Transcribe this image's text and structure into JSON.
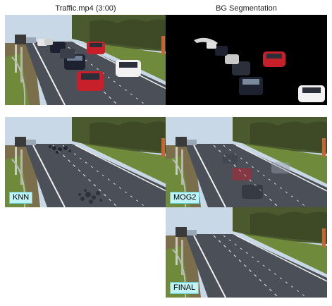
{
  "titles": {
    "source": "Traffic.mp4 (3:00)",
    "segmentation": "BG Segmentation"
  },
  "labels": {
    "knn": "KNN",
    "mog2": "MOG2",
    "final": "FINAL"
  },
  "colors": {
    "sky": "#c9d8e6",
    "road": "#4a4f58",
    "grass": "#6f8a3a",
    "trees": "#4b5a2e",
    "car_red": "#c8202a",
    "car_white": "#f2f2f2",
    "car_dark": "#1e2230",
    "label_bg": "#bff3f6"
  }
}
